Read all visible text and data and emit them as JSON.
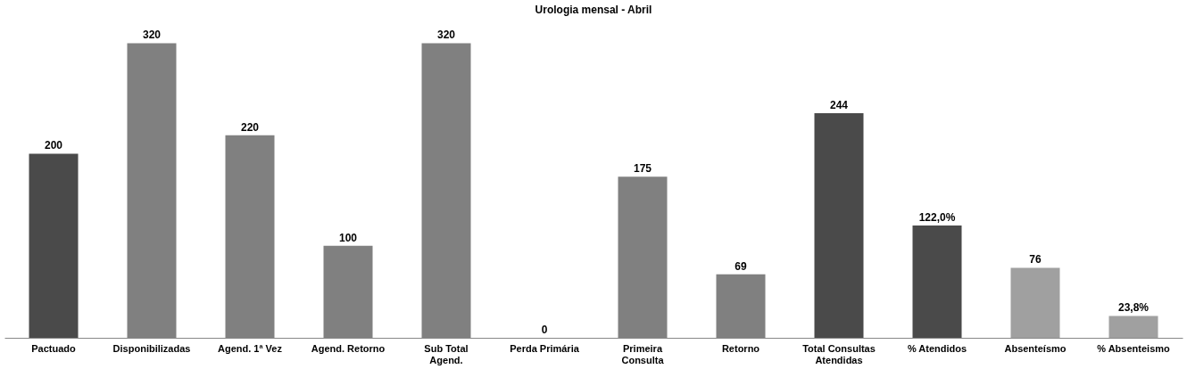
{
  "chart_data": {
    "type": "bar",
    "title": "Urologia mensal  - Abril",
    "categories": [
      "Pactuado",
      "Disponibilizadas",
      "Agend. 1ª Vez",
      "Agend. Retorno",
      "Sub Total Agend.",
      "Perda Primária",
      "Primeira Consulta",
      "Retorno",
      "Total Consultas Atendidas",
      "% Atendidos",
      "Absenteísmo",
      "% Absenteismo"
    ],
    "values": [
      200,
      320,
      220,
      100,
      320,
      0,
      175,
      69,
      244,
      122.0,
      76,
      23.8
    ],
    "value_labels": [
      "200",
      "320",
      "220",
      "100",
      "320",
      "0",
      "175",
      "69",
      "244",
      "122,0%",
      "76",
      "23,8%"
    ],
    "colors": [
      "#4a4a4a",
      "#808080",
      "#808080",
      "#808080",
      "#808080",
      "#808080",
      "#808080",
      "#808080",
      "#4a4a4a",
      "#4a4a4a",
      "#a0a0a0",
      "#a0a0a0"
    ],
    "grid": false
  }
}
